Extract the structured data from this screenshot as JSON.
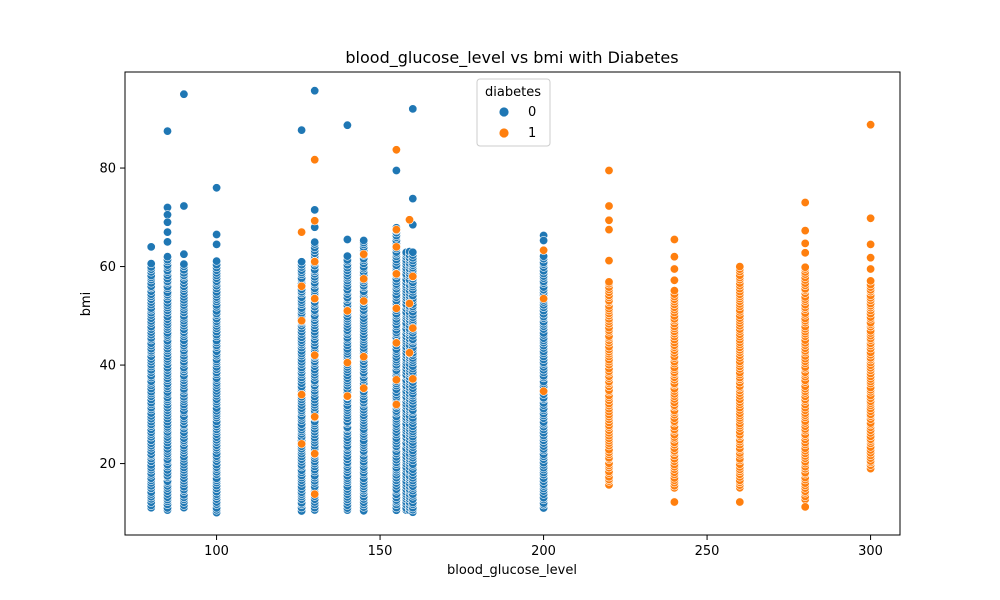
{
  "chart_data": {
    "type": "scatter",
    "title": "blood_glucose_level vs bmi with Diabetes",
    "xlabel": "blood_glucose_level",
    "ylabel": "bmi",
    "xlim": [
      72,
      309
    ],
    "ylim": [
      5.5,
      99.5
    ],
    "xticks": [
      100,
      150,
      200,
      250,
      300
    ],
    "yticks": [
      20,
      40,
      60,
      80
    ],
    "grid": false,
    "legend": {
      "title": "diabetes",
      "placement": "top-center",
      "entries": [
        {
          "label": "0",
          "color": "#1f77b4"
        },
        {
          "label": "1",
          "color": "#ff7f0e"
        }
      ]
    },
    "series": [
      {
        "name": "0",
        "color": "#1f77b4",
        "x_levels": [
          80,
          85,
          90,
          100,
          126,
          130,
          140,
          145,
          155,
          158,
          159,
          160,
          200
        ],
        "column_ranges": [
          {
            "x": 80,
            "min": 11,
            "max": 60.5
          },
          {
            "x": 85,
            "min": 10.5,
            "max": 62
          },
          {
            "x": 90,
            "min": 11,
            "max": 60.5
          },
          {
            "x": 100,
            "min": 10,
            "max": 61
          },
          {
            "x": 126,
            "min": 10.5,
            "max": 61
          },
          {
            "x": 130,
            "min": 10.5,
            "max": 65
          },
          {
            "x": 140,
            "min": 10.5,
            "max": 62
          },
          {
            "x": 145,
            "min": 10.5,
            "max": 65
          },
          {
            "x": 155,
            "min": 10.5,
            "max": 68
          },
          {
            "x": 158,
            "min": 10.5,
            "max": 63
          },
          {
            "x": 159,
            "min": 10.5,
            "max": 63
          },
          {
            "x": 160,
            "min": 10,
            "max": 63
          },
          {
            "x": 200,
            "min": 11,
            "max": 62
          }
        ],
        "outliers": [
          {
            "x": 80,
            "y": 64
          },
          {
            "x": 85,
            "y": 87.5
          },
          {
            "x": 85,
            "y": 72
          },
          {
            "x": 85,
            "y": 70.5
          },
          {
            "x": 85,
            "y": 69
          },
          {
            "x": 85,
            "y": 67
          },
          {
            "x": 85,
            "y": 65
          },
          {
            "x": 90,
            "y": 95
          },
          {
            "x": 90,
            "y": 72.3
          },
          {
            "x": 90,
            "y": 62.5
          },
          {
            "x": 100,
            "y": 76
          },
          {
            "x": 100,
            "y": 66.5
          },
          {
            "x": 100,
            "y": 64.5
          },
          {
            "x": 126,
            "y": 87.7
          },
          {
            "x": 130,
            "y": 95.7
          },
          {
            "x": 130,
            "y": 71.5
          },
          {
            "x": 130,
            "y": 68
          },
          {
            "x": 140,
            "y": 88.7
          },
          {
            "x": 140,
            "y": 65.5
          },
          {
            "x": 145,
            "y": 65.3
          },
          {
            "x": 155,
            "y": 79.5
          },
          {
            "x": 160,
            "y": 92
          },
          {
            "x": 160,
            "y": 73.8
          },
          {
            "x": 160,
            "y": 68.5
          },
          {
            "x": 200,
            "y": 66.3
          },
          {
            "x": 200,
            "y": 65.3
          }
        ]
      },
      {
        "name": "1",
        "color": "#ff7f0e",
        "x_levels": [
          126,
          130,
          140,
          145,
          155,
          158,
          159,
          160,
          200,
          220,
          240,
          260,
          280,
          300
        ],
        "points": [
          {
            "x": 126,
            "y": 67
          },
          {
            "x": 126,
            "y": 56
          },
          {
            "x": 126,
            "y": 49
          },
          {
            "x": 126,
            "y": 34
          },
          {
            "x": 126,
            "y": 24
          },
          {
            "x": 130,
            "y": 81.7
          },
          {
            "x": 130,
            "y": 69.3
          },
          {
            "x": 130,
            "y": 61
          },
          {
            "x": 130,
            "y": 53.5
          },
          {
            "x": 130,
            "y": 42
          },
          {
            "x": 130,
            "y": 29.5
          },
          {
            "x": 130,
            "y": 22
          },
          {
            "x": 130,
            "y": 13.8
          },
          {
            "x": 140,
            "y": 51
          },
          {
            "x": 140,
            "y": 40.5
          },
          {
            "x": 140,
            "y": 33.7
          },
          {
            "x": 145,
            "y": 62.5
          },
          {
            "x": 145,
            "y": 57.5
          },
          {
            "x": 145,
            "y": 53
          },
          {
            "x": 145,
            "y": 41.7
          },
          {
            "x": 145,
            "y": 35.3
          },
          {
            "x": 155,
            "y": 83.7
          },
          {
            "x": 155,
            "y": 67.5
          },
          {
            "x": 155,
            "y": 64
          },
          {
            "x": 155,
            "y": 58.5
          },
          {
            "x": 155,
            "y": 51.5
          },
          {
            "x": 155,
            "y": 44.5
          },
          {
            "x": 155,
            "y": 37
          },
          {
            "x": 155,
            "y": 32
          },
          {
            "x": 159,
            "y": 69.5
          },
          {
            "x": 159,
            "y": 52.5
          },
          {
            "x": 159,
            "y": 42.5
          },
          {
            "x": 160,
            "y": 58
          },
          {
            "x": 160,
            "y": 47.5
          },
          {
            "x": 160,
            "y": 37.2
          },
          {
            "x": 200,
            "y": 63.3
          },
          {
            "x": 200,
            "y": 53.5
          },
          {
            "x": 200,
            "y": 34.7
          },
          {
            "x": 220,
            "y": 79.5
          },
          {
            "x": 220,
            "y": 72.3
          },
          {
            "x": 220,
            "y": 69.4
          },
          {
            "x": 220,
            "y": 67.5
          },
          {
            "x": 220,
            "y": 61.2
          },
          {
            "x": 240,
            "y": 65.5
          },
          {
            "x": 240,
            "y": 62
          },
          {
            "x": 240,
            "y": 59.5
          },
          {
            "x": 240,
            "y": 57.2
          },
          {
            "x": 240,
            "y": 12.2
          },
          {
            "x": 260,
            "y": 12.2
          },
          {
            "x": 280,
            "y": 73
          },
          {
            "x": 280,
            "y": 67.3
          },
          {
            "x": 280,
            "y": 64.7
          },
          {
            "x": 280,
            "y": 62.8
          },
          {
            "x": 280,
            "y": 11.2
          },
          {
            "x": 300,
            "y": 88.8
          },
          {
            "x": 300,
            "y": 69.8
          },
          {
            "x": 300,
            "y": 64.5
          },
          {
            "x": 300,
            "y": 61.8
          },
          {
            "x": 300,
            "y": 59.5
          }
        ],
        "column_ranges": [
          {
            "x": 220,
            "min": 15.8,
            "max": 57
          },
          {
            "x": 240,
            "min": 15,
            "max": 55
          },
          {
            "x": 260,
            "min": 15,
            "max": 60
          },
          {
            "x": 280,
            "min": 12.8,
            "max": 60
          },
          {
            "x": 300,
            "min": 19,
            "max": 57
          }
        ]
      }
    ]
  }
}
